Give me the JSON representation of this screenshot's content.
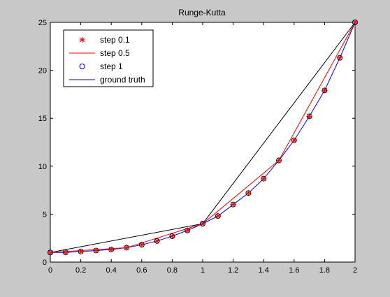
{
  "chart_data": {
    "type": "line",
    "title": "Runge-Kutta",
    "xlabel": "",
    "ylabel": "",
    "xlim": [
      0,
      2
    ],
    "ylim": [
      0,
      25
    ],
    "xticks": [
      "0",
      "0.2",
      "0.4",
      "0.6",
      "0.8",
      "1",
      "1.2",
      "1.4",
      "1.6",
      "1.8",
      "2"
    ],
    "yticks": [
      "0",
      "5",
      "10",
      "15",
      "20",
      "25"
    ],
    "grid": false,
    "legend_position": "top-left",
    "series": [
      {
        "name": "step 0.1",
        "marker": "star",
        "color": "#ff0000",
        "x": [
          0,
          0.1,
          0.2,
          0.3,
          0.4,
          0.5,
          0.6,
          0.7,
          0.8,
          0.9,
          1.0,
          1.1,
          1.2,
          1.3,
          1.4,
          1.5,
          1.6,
          1.7,
          1.8,
          1.9,
          2.0
        ],
        "y": [
          1.0,
          1.0,
          1.1,
          1.2,
          1.3,
          1.5,
          1.8,
          2.2,
          2.7,
          3.3,
          4.0,
          4.8,
          6.0,
          7.2,
          8.7,
          10.6,
          12.7,
          15.2,
          17.9,
          21.3,
          25.0
        ]
      },
      {
        "name": "step 0.5",
        "marker": "none",
        "color": "#ff0000",
        "x": [
          0,
          0.5,
          1.0,
          1.5,
          2.0
        ],
        "y": [
          1.0,
          1.5,
          4.0,
          10.6,
          25.0
        ]
      },
      {
        "name": "step 1",
        "marker": "circle",
        "color": "#0000ff",
        "x": [
          0,
          1.0,
          2.0
        ],
        "y": [
          1.0,
          4.0,
          25.0
        ]
      },
      {
        "name": "ground truth",
        "marker": "none",
        "color": "#0000ff",
        "x": [
          0,
          0.1,
          0.2,
          0.3,
          0.4,
          0.5,
          0.6,
          0.7,
          0.8,
          0.9,
          1.0,
          1.1,
          1.2,
          1.3,
          1.4,
          1.5,
          1.6,
          1.7,
          1.8,
          1.9,
          2.0
        ],
        "y": [
          1.0,
          1.0,
          1.1,
          1.2,
          1.3,
          1.5,
          1.8,
          2.2,
          2.7,
          3.3,
          4.0,
          4.8,
          6.0,
          7.2,
          8.7,
          10.6,
          12.7,
          15.2,
          17.9,
          21.3,
          25.0
        ]
      },
      {
        "name": "",
        "marker": "none",
        "color": "#000000",
        "x": [
          0,
          1.0,
          2.0
        ],
        "y": [
          1.0,
          4.0,
          25.0
        ]
      }
    ]
  }
}
